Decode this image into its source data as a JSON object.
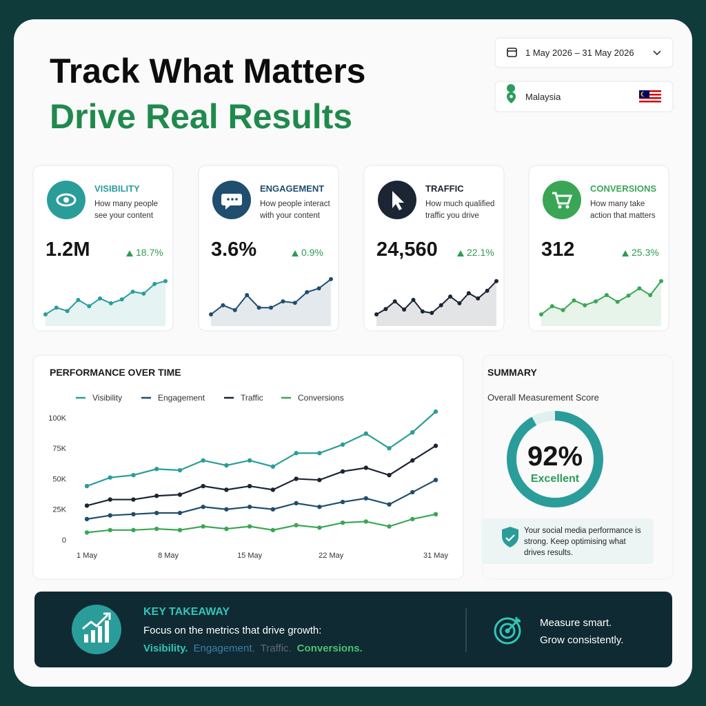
{
  "header": {
    "title": "Track What Matters",
    "subtitle": "Drive Real Results"
  },
  "filters": {
    "date_range": "1 May 2026 – 31 May 2026",
    "location": "Malaysia"
  },
  "cards": [
    {
      "title": "VISIBILITY",
      "description": "How many people see your content",
      "value": "1.2M",
      "change": "18.7%",
      "color": "#2a9d9a",
      "sparkline": {
        "values": [
          20,
          34,
          27,
          50,
          37,
          53,
          43,
          51,
          67,
          63,
          83,
          89
        ],
        "ylim": [
          0,
          100
        ]
      }
    },
    {
      "title": "ENGAGEMENT",
      "description": "How people interact with your content",
      "value": "3.6%",
      "change": "0.9%",
      "color": "#1f4e6e",
      "sparkline": {
        "values": [
          20,
          39,
          29,
          60,
          34,
          34,
          47,
          44,
          66,
          74,
          93
        ],
        "ylim": [
          0,
          100
        ]
      }
    },
    {
      "title": "TRAFFIC",
      "description": "How much qualified traffic you drive",
      "value": "24,560",
      "change": "22.1%",
      "color": "#1c2533",
      "sparkline": {
        "values": [
          20,
          31,
          47,
          30,
          50,
          26,
          23,
          39,
          57,
          43,
          64,
          53,
          69,
          89
        ],
        "ylim": [
          0,
          100
        ]
      }
    },
    {
      "title": "CONVERSIONS",
      "description": "How many take action that matters",
      "value": "312",
      "change": "25.3%",
      "color": "#3aa655",
      "sparkline": {
        "values": [
          20,
          37,
          29,
          49,
          39,
          47,
          60,
          46,
          59,
          74,
          60,
          89
        ],
        "ylim": [
          0,
          100
        ]
      }
    }
  ],
  "chart_data": {
    "type": "line",
    "title": "PERFORMANCE OVER TIME",
    "x": [
      1,
      3,
      5,
      7,
      9,
      11,
      13,
      15,
      17,
      19,
      21,
      23,
      25,
      27,
      29,
      31
    ],
    "xlim": [
      1,
      31
    ],
    "xticks": [
      {
        "value": 1,
        "label": "1 May"
      },
      {
        "value": 8,
        "label": "8 May"
      },
      {
        "value": 15,
        "label": "15 May"
      },
      {
        "value": 22,
        "label": "22 May"
      },
      {
        "value": 31,
        "label": "31 May"
      }
    ],
    "ylim": [
      0,
      105
    ],
    "yticks": [
      0,
      {
        "value": 25,
        "label": "25K"
      },
      {
        "value": 50,
        "label": "50K"
      },
      {
        "value": 75,
        "label": "75K"
      },
      {
        "value": 100,
        "label": "100K"
      }
    ],
    "grid": false,
    "series": [
      {
        "name": "Visibility",
        "color": "#2a9d9a",
        "values": [
          44,
          51,
          53,
          58,
          57,
          65,
          61,
          65,
          60,
          71,
          71,
          78,
          87,
          75,
          88,
          105
        ]
      },
      {
        "name": "Engagement",
        "color": "#1f4e6e",
        "values": [
          17,
          20,
          21,
          22,
          22,
          27,
          25,
          27,
          25,
          30,
          27,
          31,
          34,
          29,
          39,
          49
        ]
      },
      {
        "name": "Traffic",
        "color": "#1c2533",
        "values": [
          28,
          33,
          33,
          36,
          37,
          44,
          41,
          44,
          41,
          50,
          49,
          56,
          59,
          53,
          65,
          77
        ]
      },
      {
        "name": "Conversions",
        "color": "#3aa655",
        "values": [
          6,
          8,
          8,
          9,
          8,
          11,
          9,
          11,
          8,
          12,
          10,
          14,
          15,
          11,
          17,
          21
        ]
      }
    ]
  },
  "summary": {
    "title": "SUMMARY",
    "subtitle": "Overall Measurement Score",
    "score": 92,
    "score_label": "92%",
    "range": [
      0,
      100
    ],
    "rating": "Excellent",
    "color": "#2a9d9a",
    "note": "Your social media performance is strong. Keep optimising what drives results."
  },
  "takeaway": {
    "title": "KEY TAKEAWAY",
    "text": "Focus on the metrics that drive growth:",
    "metrics": [
      {
        "text": "Visibility.",
        "color": "#35c4b8"
      },
      {
        "text": "Engagement.",
        "color": "#3d7fa6"
      },
      {
        "text": "Traffic.",
        "color": "#5f6a72"
      },
      {
        "text": "Conversions.",
        "color": "#4cc26e"
      }
    ],
    "motto": [
      "Measure smart.",
      "Grow consistently."
    ]
  }
}
